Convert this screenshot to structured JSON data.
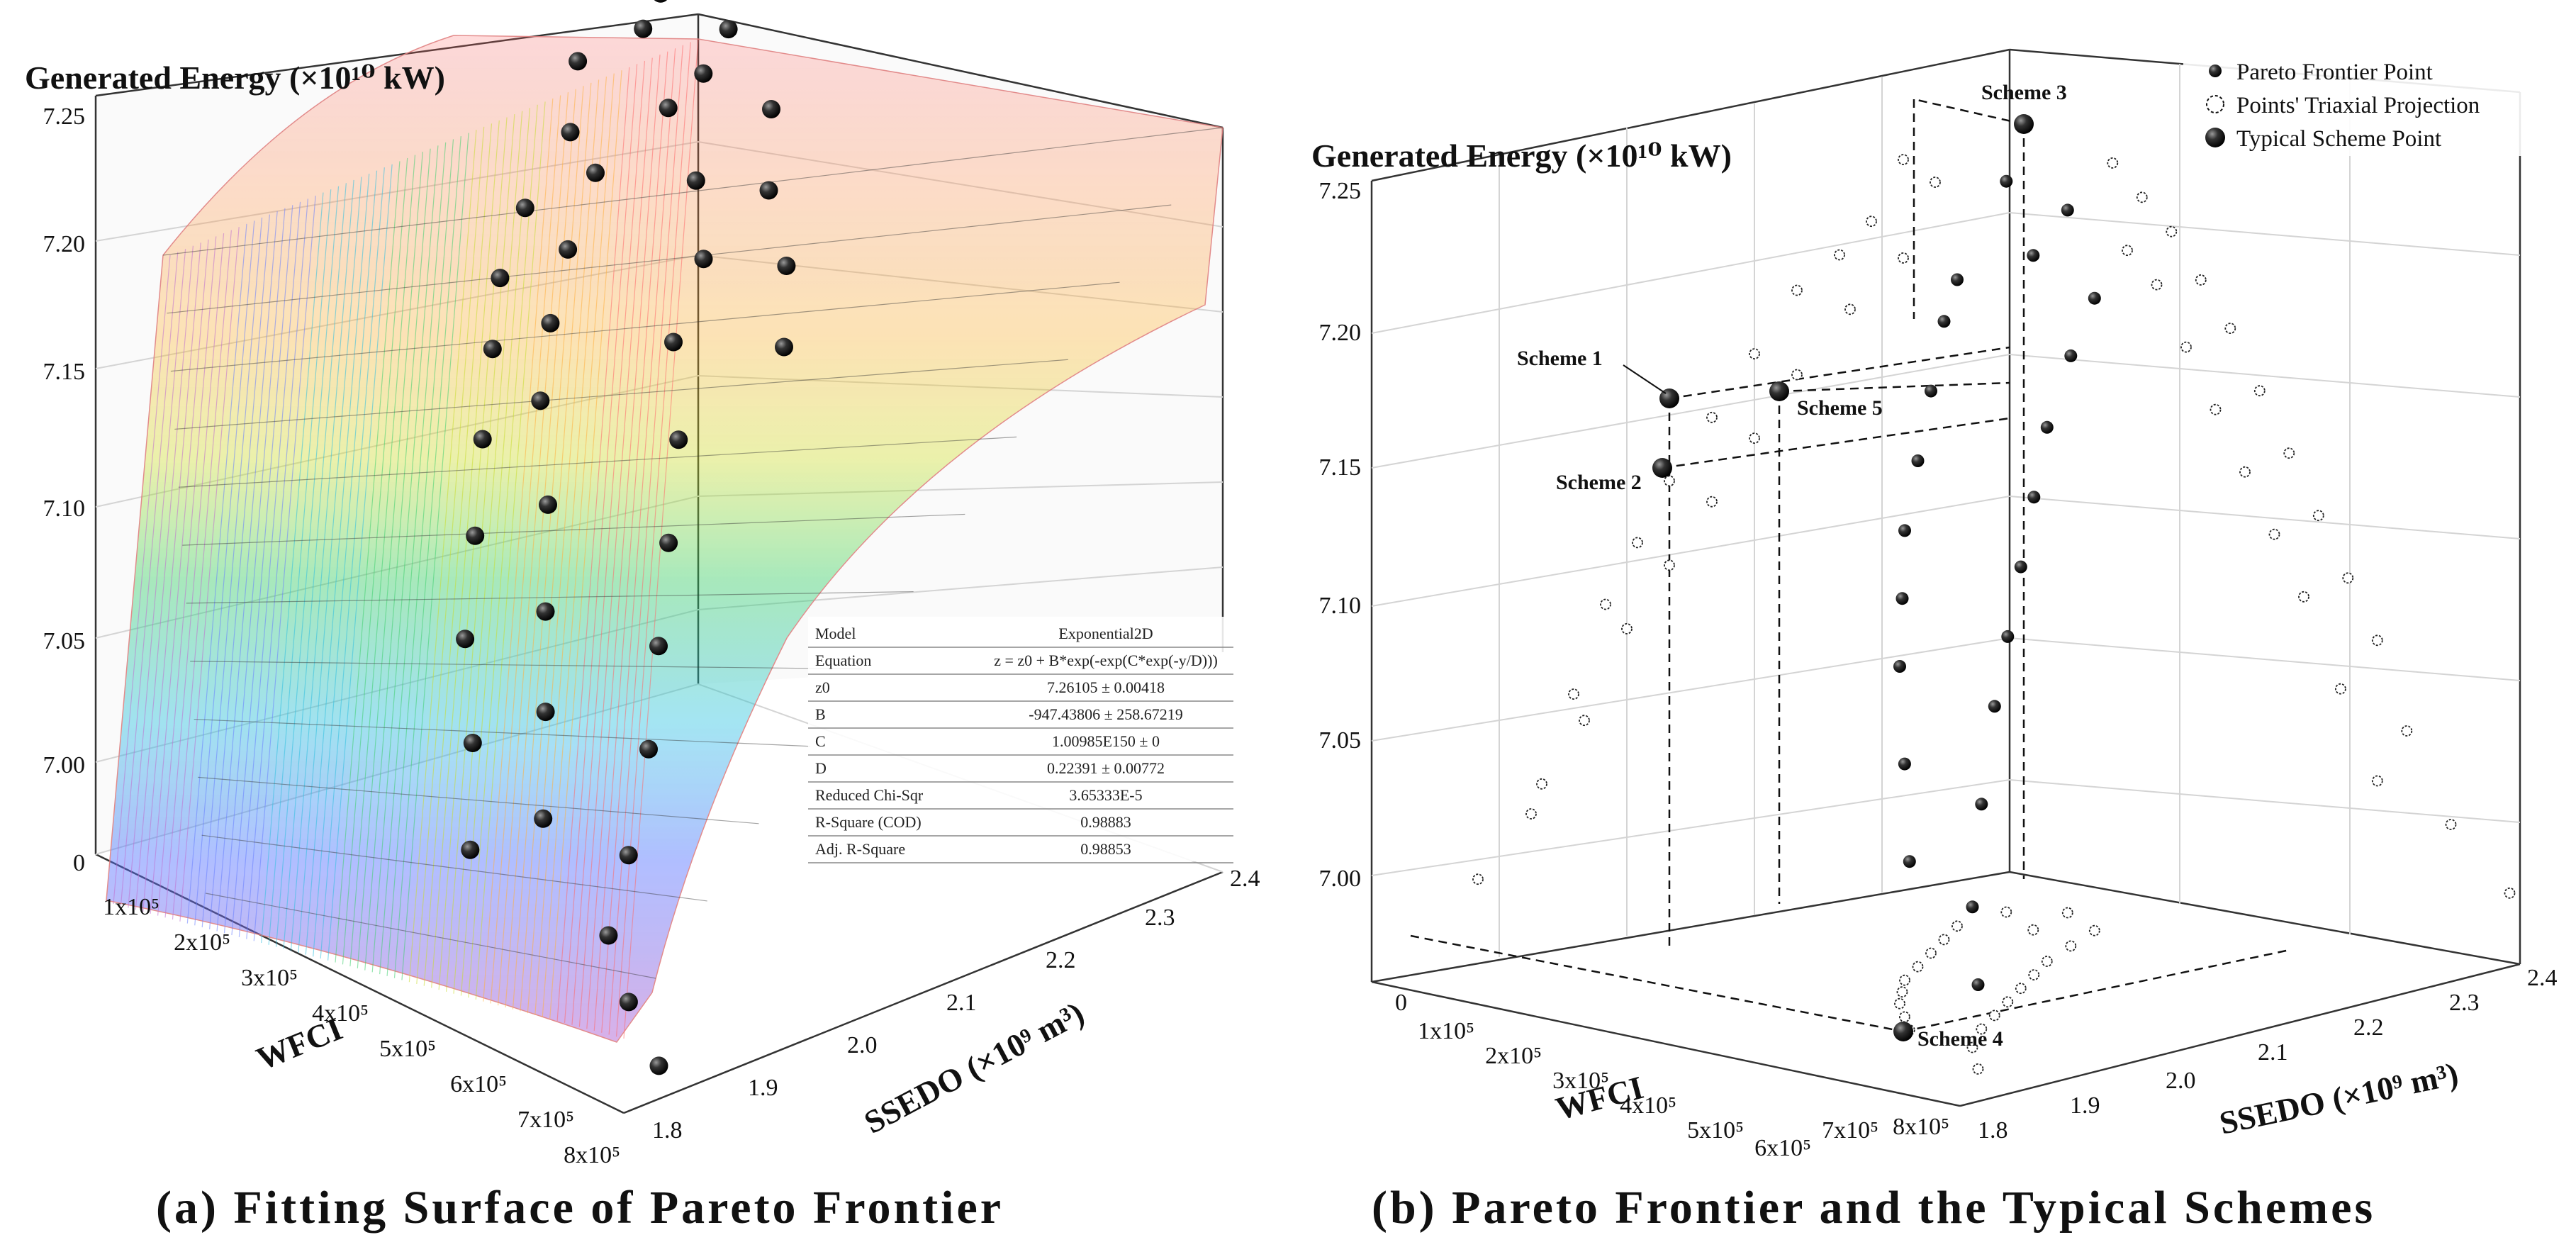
{
  "panel_a": {
    "caption": "(a) Fitting Surface of Pareto Frontier",
    "z_title": "Generated Energy (×10¹⁰ kW)",
    "x_title": "WFCI",
    "y_title": "SSEDO (×10⁹ m³)",
    "z_ticks": [
      "7.25",
      "7.20",
      "7.15",
      "7.10",
      "7.05",
      "7.00",
      "0"
    ],
    "x_ticks": [
      "1x10⁵",
      "2x10⁵",
      "3x10⁵",
      "4x10⁵",
      "5x10⁵",
      "6x10⁵",
      "7x10⁵",
      "8x10⁵"
    ],
    "y_ticks": [
      "1.8",
      "1.9",
      "2.0",
      "2.1",
      "2.2",
      "2.3",
      "2.4"
    ],
    "fit_table": [
      {
        "name": "Model",
        "value": "Exponential2D"
      },
      {
        "name": "Equation",
        "value": "z = z0 + B*exp(-exp(C*exp(-y/D)))"
      },
      {
        "name": "z0",
        "value": "7.26105 ± 0.00418"
      },
      {
        "name": "B",
        "value": "-947.43806 ± 258.67219"
      },
      {
        "name": "C",
        "value": "1.00985E150 ± 0"
      },
      {
        "name": "D",
        "value": "0.22391 ± 0.00772"
      },
      {
        "name": "Reduced Chi-Sqr",
        "value": "3.65333E-5"
      },
      {
        "name": "R-Square (COD)",
        "value": "0.98883"
      },
      {
        "name": "Adj. R-Square",
        "value": "0.98853"
      }
    ]
  },
  "panel_b": {
    "caption": "(b) Pareto Frontier and the Typical Schemes",
    "z_title": "Generated Energy (×10¹⁰ kW)",
    "x_title": "WFCI",
    "y_title": "SSEDO (×10⁹ m³)",
    "z_ticks": [
      "7.25",
      "7.20",
      "7.15",
      "7.10",
      "7.05",
      "7.00"
    ],
    "x_ticks": [
      "0",
      "1x10⁵",
      "2x10⁵",
      "3x10⁵",
      "4x10⁵",
      "5x10⁵",
      "6x10⁵",
      "7x10⁵",
      "8x10⁵"
    ],
    "y_ticks": [
      "1.8",
      "1.9",
      "2.0",
      "2.1",
      "2.2",
      "2.3",
      "2.4"
    ],
    "legend": [
      "Pareto Frontier Point",
      "Points' Triaxial Projection",
      "Typical Scheme Point"
    ],
    "scheme_labels": [
      "Scheme 1",
      "Scheme 2",
      "Scheme 3",
      "Scheme 4",
      "Scheme 5"
    ]
  },
  "chart_data": [
    {
      "type": "scatter",
      "title": "(a) Fitting Surface of Pareto Frontier",
      "xlabel": "WFCI",
      "ylabel": "SSEDO (×10⁹ m³)",
      "zlabel": "Generated Energy (×10¹⁰ kW)",
      "xlim": [
        100000,
        800000
      ],
      "ylim": [
        1.8,
        2.4
      ],
      "zlim": [
        6.96,
        7.25
      ],
      "surface_colormap": [
        "#b060d0",
        "#5070ff",
        "#20c0e0",
        "#30d060",
        "#d0e020",
        "#ffb020",
        "#ff5050"
      ],
      "points": [
        {
          "x": 130000,
          "y": 2.34,
          "z": 7.24
        },
        {
          "x": 160000,
          "y": 2.3,
          "z": 7.235
        },
        {
          "x": 180000,
          "y": 2.37,
          "z": 7.23
        },
        {
          "x": 140000,
          "y": 2.25,
          "z": 7.225
        },
        {
          "x": 200000,
          "y": 2.33,
          "z": 7.22
        },
        {
          "x": 220000,
          "y": 2.28,
          "z": 7.215
        },
        {
          "x": 250000,
          "y": 2.36,
          "z": 7.21
        },
        {
          "x": 170000,
          "y": 2.22,
          "z": 7.205
        },
        {
          "x": 230000,
          "y": 2.2,
          "z": 7.2
        },
        {
          "x": 270000,
          "y": 2.27,
          "z": 7.195
        },
        {
          "x": 300000,
          "y": 2.32,
          "z": 7.19
        },
        {
          "x": 190000,
          "y": 2.16,
          "z": 7.185
        },
        {
          "x": 260000,
          "y": 2.15,
          "z": 7.18
        },
        {
          "x": 320000,
          "y": 2.24,
          "z": 7.175
        },
        {
          "x": 350000,
          "y": 2.3,
          "z": 7.17
        },
        {
          "x": 210000,
          "y": 2.12,
          "z": 7.165
        },
        {
          "x": 290000,
          "y": 2.11,
          "z": 7.16
        },
        {
          "x": 360000,
          "y": 2.18,
          "z": 7.155
        },
        {
          "x": 400000,
          "y": 2.26,
          "z": 7.15
        },
        {
          "x": 240000,
          "y": 2.09,
          "z": 7.145
        },
        {
          "x": 330000,
          "y": 2.07,
          "z": 7.14
        },
        {
          "x": 420000,
          "y": 2.14,
          "z": 7.13
        },
        {
          "x": 280000,
          "y": 2.05,
          "z": 7.12
        },
        {
          "x": 380000,
          "y": 2.04,
          "z": 7.11
        },
        {
          "x": 460000,
          "y": 2.1,
          "z": 7.1
        },
        {
          "x": 310000,
          "y": 2.02,
          "z": 7.09
        },
        {
          "x": 430000,
          "y": 2.0,
          "z": 7.08
        },
        {
          "x": 500000,
          "y": 2.06,
          "z": 7.07
        },
        {
          "x": 350000,
          "y": 1.98,
          "z": 7.06
        },
        {
          "x": 470000,
          "y": 1.97,
          "z": 7.05
        },
        {
          "x": 540000,
          "y": 2.02,
          "z": 7.04
        },
        {
          "x": 400000,
          "y": 1.95,
          "z": 7.03
        },
        {
          "x": 520000,
          "y": 1.93,
          "z": 7.02
        },
        {
          "x": 580000,
          "y": 1.97,
          "z": 7.01
        },
        {
          "x": 450000,
          "y": 1.91,
          "z": 7.0
        },
        {
          "x": 620000,
          "y": 1.92,
          "z": 6.99
        },
        {
          "x": 700000,
          "y": 1.88,
          "z": 6.98
        },
        {
          "x": 780000,
          "y": 1.85,
          "z": 6.97
        }
      ],
      "fit": {
        "model": "Exponential2D",
        "z0": 7.26105,
        "B": -947.43806,
        "C": 1.00985e+150,
        "D": 0.22391,
        "r_square": 0.98883,
        "adj_r_square": 0.98853
      }
    },
    {
      "type": "scatter",
      "title": "(b) Pareto Frontier and the Typical Schemes",
      "xlabel": "WFCI",
      "ylabel": "SSEDO (×10⁹ m³)",
      "zlabel": "Generated Energy (×10¹⁰ kW)",
      "xlim": [
        0,
        800000
      ],
      "ylim": [
        1.8,
        2.4
      ],
      "zlim": [
        6.97,
        7.25
      ],
      "legend_position": "top-right",
      "series": [
        {
          "name": "Pareto Frontier Point",
          "points": [
            {
              "x": 140000,
              "y": 2.3,
              "z": 7.23
            },
            {
              "x": 180000,
              "y": 2.33,
              "z": 7.22
            },
            {
              "x": 220000,
              "y": 2.27,
              "z": 7.21
            },
            {
              "x": 160000,
              "y": 2.24,
              "z": 7.2
            },
            {
              "x": 260000,
              "y": 2.3,
              "z": 7.195
            },
            {
              "x": 200000,
              "y": 2.2,
              "z": 7.19
            },
            {
              "x": 300000,
              "y": 2.25,
              "z": 7.18
            },
            {
              "x": 240000,
              "y": 2.16,
              "z": 7.17
            },
            {
              "x": 340000,
              "y": 2.2,
              "z": 7.16
            },
            {
              "x": 280000,
              "y": 2.12,
              "z": 7.15
            },
            {
              "x": 380000,
              "y": 2.16,
              "z": 7.14
            },
            {
              "x": 320000,
              "y": 2.08,
              "z": 7.13
            },
            {
              "x": 420000,
              "y": 2.12,
              "z": 7.12
            },
            {
              "x": 360000,
              "y": 2.05,
              "z": 7.11
            },
            {
              "x": 460000,
              "y": 2.08,
              "z": 7.1
            },
            {
              "x": 400000,
              "y": 2.02,
              "z": 7.09
            },
            {
              "x": 500000,
              "y": 2.04,
              "z": 7.08
            },
            {
              "x": 450000,
              "y": 1.99,
              "z": 7.06
            },
            {
              "x": 540000,
              "y": 2.0,
              "z": 7.05
            },
            {
              "x": 500000,
              "y": 1.96,
              "z": 7.03
            },
            {
              "x": 600000,
              "y": 1.95,
              "z": 7.02
            },
            {
              "x": 680000,
              "y": 1.9,
              "z": 7.0
            }
          ]
        },
        {
          "name": "Typical Scheme Point",
          "points": [
            {
              "label": "Scheme 1",
              "x": 200000,
              "y": 2.18,
              "z": 7.175
            },
            {
              "label": "Scheme 2",
              "x": 250000,
              "y": 2.1,
              "z": 7.15
            },
            {
              "label": "Scheme 3",
              "x": 120000,
              "y": 2.38,
              "z": 7.24
            },
            {
              "label": "Scheme 4",
              "x": 700000,
              "y": 2.05,
              "z": 6.97
            },
            {
              "label": "Scheme 5",
              "x": 280000,
              "y": 2.15,
              "z": 7.165
            }
          ]
        }
      ]
    }
  ]
}
